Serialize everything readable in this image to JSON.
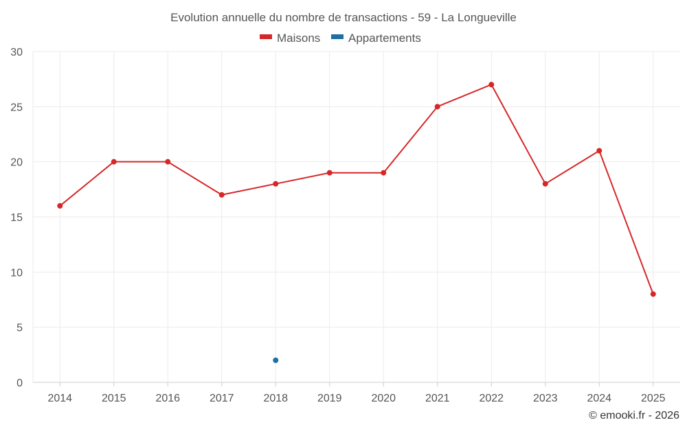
{
  "credit": "© emooki.fr - 2026",
  "chart_data": {
    "type": "line",
    "title": "Evolution annuelle du nombre de transactions - 59 - La Longueville",
    "xlabel": "",
    "ylabel": "",
    "categories": [
      "2014",
      "2015",
      "2016",
      "2017",
      "2018",
      "2019",
      "2020",
      "2021",
      "2022",
      "2023",
      "2024",
      "2025"
    ],
    "ylim": [
      0,
      30
    ],
    "yticks": [
      0,
      5,
      10,
      15,
      20,
      25,
      30
    ],
    "grid": true,
    "legend_position": "top-center",
    "series": [
      {
        "name": "Maisons",
        "color": "#d62728",
        "values": [
          16,
          20,
          20,
          17,
          18,
          19,
          19,
          25,
          27,
          18,
          21,
          8
        ]
      },
      {
        "name": "Appartements",
        "color": "#1f6fa5",
        "values": [
          null,
          null,
          null,
          null,
          2,
          null,
          null,
          null,
          null,
          null,
          null,
          null
        ]
      }
    ]
  }
}
